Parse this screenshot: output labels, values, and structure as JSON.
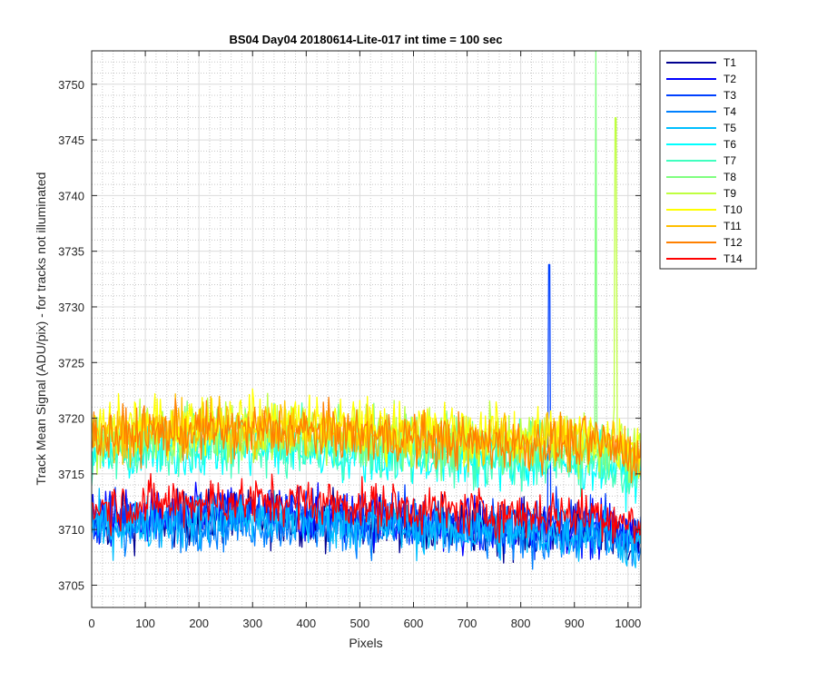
{
  "chart_data": {
    "type": "line",
    "title": "BS04 Day04 20180614-Lite-017 int time = 100 sec",
    "xlabel": "Pixels",
    "ylabel": "Track Mean Signal (ADU/pix) - for tracks not illuminated",
    "xlim": [
      0,
      1024
    ],
    "ylim": [
      3703,
      3753
    ],
    "xticks": [
      0,
      100,
      200,
      300,
      400,
      500,
      600,
      700,
      800,
      900,
      1000
    ],
    "yticks": [
      3705,
      3710,
      3715,
      3720,
      3725,
      3730,
      3735,
      3740,
      3745,
      3750
    ],
    "grid": "major and minor (dotted)",
    "legend_position": "outside top-right",
    "series": [
      {
        "name": "T1",
        "color": "#00008f",
        "mean": 3710.5,
        "noise": 2.0
      },
      {
        "name": "T2",
        "color": "#0000ff",
        "mean": 3710.8,
        "noise": 2.0
      },
      {
        "name": "T3",
        "color": "#0040ff",
        "mean": 3711.0,
        "noise": 2.0,
        "spikes": [
          {
            "x": 853,
            "y": 3733.8
          }
        ]
      },
      {
        "name": "T4",
        "color": "#0080ff",
        "mean": 3710.0,
        "noise": 2.0
      },
      {
        "name": "T5",
        "color": "#00bfff",
        "mean": 3710.3,
        "noise": 2.0
      },
      {
        "name": "T6",
        "color": "#00ffff",
        "mean": 3716.5,
        "noise": 2.0
      },
      {
        "name": "T7",
        "color": "#40ffbf",
        "mean": 3717.0,
        "noise": 2.2
      },
      {
        "name": "T8",
        "color": "#80ff80",
        "mean": 3718.0,
        "noise": 2.2,
        "spikes": [
          {
            "x": 940,
            "y": 3753.0
          }
        ]
      },
      {
        "name": "T9",
        "color": "#bfff40",
        "mean": 3718.5,
        "noise": 2.2,
        "spikes": [
          {
            "x": 977,
            "y": 3747.0
          }
        ]
      },
      {
        "name": "T10",
        "color": "#ffff00",
        "mean": 3719.0,
        "noise": 2.2
      },
      {
        "name": "T11",
        "color": "#ffbf00",
        "mean": 3718.5,
        "noise": 2.0
      },
      {
        "name": "T12",
        "color": "#ff8000",
        "mean": 3718.3,
        "noise": 2.0
      },
      {
        "name": "T14",
        "color": "#ff0000",
        "mean": 3712.0,
        "noise": 1.8
      }
    ]
  }
}
